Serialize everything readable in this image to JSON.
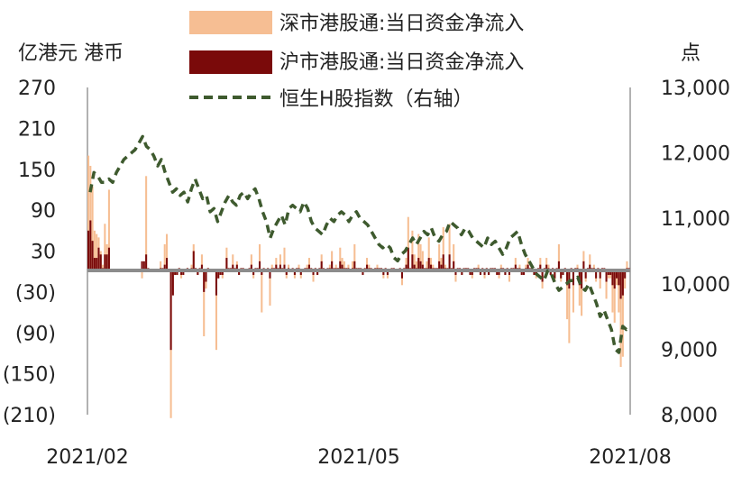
{
  "chart_data": {
    "type": "bar+line",
    "legend": [
      {
        "label": "深市港股通:当日资金净流入",
        "color": "#F6BE93",
        "kind": "bar"
      },
      {
        "label": "沪市港股通:当日资金净流入",
        "color": "#7A0A0A",
        "kind": "bar"
      },
      {
        "label": "恒生H股指数（右轴）",
        "color": "#3E5A2E",
        "kind": "dashed-line"
      }
    ],
    "y_left": {
      "unit_label": "亿港元 港币",
      "min": -210,
      "max": 270,
      "ticks": [
        270,
        210,
        150,
        90,
        30,
        -30,
        -90,
        -150,
        -210
      ],
      "tick_labels": [
        "270",
        "210",
        "150",
        "90",
        "30",
        "(30)",
        "(90)",
        "(150)",
        "(210)"
      ]
    },
    "y_right": {
      "unit_label": "点",
      "min": 8000,
      "max": 13000,
      "ticks": [
        13000,
        12000,
        11000,
        10000,
        9000,
        8000
      ],
      "tick_labels": [
        "13,000",
        "12,000",
        "11,000",
        "10,000",
        "9,000",
        "8,000"
      ]
    },
    "x_axis": {
      "tick_labels": [
        "2021/02",
        "2021/05",
        "2021/08"
      ],
      "tick_positions": [
        0,
        0.5,
        1
      ]
    },
    "shenzhen_net_inflow": [
      170,
      155,
      125,
      60,
      55,
      50,
      30,
      10,
      70,
      40,
      120,
      0,
      0,
      0,
      0,
      0,
      0,
      0,
      0,
      0,
      0,
      0,
      0,
      0,
      0,
      0,
      -10,
      5,
      140,
      5,
      0,
      0,
      0,
      0,
      0,
      15,
      5,
      40,
      55,
      0,
      -215,
      -5,
      -5,
      -5,
      5,
      -10,
      -5,
      0,
      5,
      0,
      10,
      40,
      5,
      -5,
      5,
      25,
      -95,
      -25,
      5,
      0,
      0,
      0,
      -115,
      -10,
      -5,
      -10,
      0,
      35,
      5,
      5,
      25,
      5,
      15,
      -5,
      5,
      5,
      0,
      0,
      5,
      25,
      -10,
      5,
      5,
      40,
      -60,
      5,
      0,
      5,
      -50,
      10,
      5,
      20,
      5,
      25,
      5,
      35,
      -10,
      10,
      0,
      5,
      -10,
      5,
      10,
      -10,
      0,
      5,
      10,
      20,
      5,
      -15,
      5,
      -5,
      5,
      25,
      5,
      0,
      5,
      10,
      30,
      5,
      10,
      5,
      35,
      20,
      15,
      5,
      10,
      0,
      15,
      40,
      5,
      5,
      5,
      -5,
      5,
      20,
      10,
      5,
      0,
      5,
      10,
      5,
      5,
      -10,
      5,
      -10,
      0,
      5,
      5,
      0,
      0,
      5,
      -20,
      5,
      20,
      80,
      5,
      60,
      25,
      15,
      55,
      40,
      30,
      5,
      15,
      50,
      20,
      10,
      5,
      5,
      40,
      20,
      65,
      10,
      5,
      70,
      5,
      40,
      -15,
      5,
      5,
      -5,
      5,
      5,
      5,
      -5,
      -10,
      5,
      5,
      10,
      -5,
      5,
      -10,
      5,
      -5,
      5,
      5,
      5,
      -5,
      -10,
      10,
      5,
      -5,
      5,
      -15,
      5,
      5,
      20,
      5,
      10,
      -5,
      -5,
      10,
      20,
      5,
      5,
      -5,
      -10,
      5,
      20,
      -25,
      5,
      20,
      10,
      -5,
      5,
      -15,
      5,
      40,
      -15,
      -5,
      5,
      -70,
      -105,
      5,
      -60,
      5,
      10,
      -50,
      -65,
      30,
      -15,
      5,
      25,
      5,
      10,
      -15,
      5,
      -25,
      5,
      5,
      -40,
      -10,
      -10,
      -60,
      -75,
      -20,
      -60,
      -140,
      -125,
      -25,
      15,
      5
    ],
    "shanghai_net_inflow": [
      60,
      75,
      45,
      20,
      20,
      35,
      25,
      5,
      25,
      25,
      35,
      0,
      0,
      0,
      0,
      0,
      0,
      0,
      0,
      0,
      0,
      0,
      0,
      0,
      0,
      0,
      15,
      15,
      25,
      5,
      0,
      0,
      0,
      0,
      0,
      5,
      5,
      10,
      20,
      0,
      -115,
      -35,
      -5,
      -5,
      5,
      -5,
      -5,
      0,
      5,
      0,
      5,
      30,
      5,
      -5,
      5,
      10,
      -30,
      -15,
      5,
      0,
      0,
      0,
      -35,
      -10,
      -5,
      -5,
      0,
      20,
      5,
      5,
      10,
      5,
      10,
      -5,
      5,
      5,
      0,
      0,
      5,
      10,
      -5,
      5,
      5,
      15,
      -5,
      5,
      0,
      5,
      -10,
      5,
      5,
      10,
      5,
      10,
      5,
      10,
      -5,
      5,
      0,
      5,
      -5,
      5,
      5,
      -5,
      0,
      5,
      5,
      10,
      5,
      -5,
      5,
      -5,
      5,
      15,
      5,
      0,
      5,
      5,
      15,
      5,
      5,
      5,
      15,
      10,
      5,
      5,
      5,
      0,
      5,
      15,
      5,
      5,
      5,
      -5,
      5,
      10,
      5,
      5,
      0,
      5,
      5,
      5,
      5,
      -5,
      5,
      -5,
      0,
      5,
      5,
      0,
      0,
      5,
      -10,
      5,
      10,
      35,
      5,
      25,
      10,
      5,
      20,
      15,
      10,
      5,
      5,
      20,
      10,
      5,
      5,
      5,
      15,
      10,
      25,
      5,
      5,
      25,
      5,
      15,
      -5,
      5,
      5,
      -5,
      5,
      5,
      5,
      -5,
      -5,
      5,
      5,
      5,
      -5,
      5,
      -5,
      5,
      -5,
      5,
      5,
      5,
      -5,
      -5,
      5,
      5,
      -5,
      5,
      -5,
      5,
      5,
      10,
      5,
      5,
      -5,
      -5,
      5,
      10,
      5,
      5,
      -5,
      -5,
      5,
      10,
      -15,
      5,
      10,
      5,
      -5,
      5,
      -10,
      5,
      15,
      -10,
      -5,
      5,
      -20,
      -25,
      5,
      -20,
      5,
      5,
      -20,
      -25,
      15,
      -10,
      5,
      10,
      5,
      5,
      -10,
      5,
      -10,
      5,
      5,
      -15,
      -5,
      -5,
      -20,
      -25,
      -10,
      -20,
      -40,
      -35,
      -10,
      5,
      5
    ],
    "hscei_index": [
      11400,
      11700,
      11650,
      11550,
      11550,
      11600,
      11550,
      11700,
      11800,
      11900,
      11950,
      12000,
      12050,
      12150,
      12250,
      12100,
      12050,
      11950,
      11800,
      11900,
      11700,
      11550,
      11400,
      11450,
      11350,
      11400,
      11250,
      11450,
      11600,
      11450,
      11300,
      11350,
      11100,
      11150,
      10950,
      11100,
      11250,
      11350,
      11250,
      11200,
      11350,
      11400,
      11300,
      11400,
      11450,
      11300,
      11100,
      10950,
      10700,
      10850,
      10950,
      11050,
      10900,
      11150,
      11200,
      11150,
      11100,
      11250,
      11150,
      10950,
      10850,
      10800,
      10750,
      10900,
      11000,
      10950,
      11050,
      11100,
      11050,
      10950,
      11050,
      11100,
      11000,
      10950,
      10900,
      10800,
      10700,
      10600,
      10550,
      10600,
      10550,
      10400,
      10350,
      10450,
      10500,
      10600,
      10700,
      10600,
      10700,
      10800,
      10750,
      10850,
      10700,
      10650,
      10750,
      10800,
      10950,
      10900,
      10850,
      10750,
      10850,
      10800,
      10700,
      10650,
      10600,
      10550,
      10700,
      10600,
      10650,
      10550,
      10450,
      10550,
      10700,
      10750,
      10800,
      10600,
      10450,
      10350,
      10250,
      10150,
      10100,
      10050,
      10200,
      10150,
      10000,
      9900,
      9950,
      10000,
      10050,
      10050,
      10100,
      9950,
      9900,
      10000,
      9850,
      9700,
      9500,
      9600,
      9450,
      9300,
      9000,
      8950,
      9350,
      9300,
      9350
    ]
  }
}
